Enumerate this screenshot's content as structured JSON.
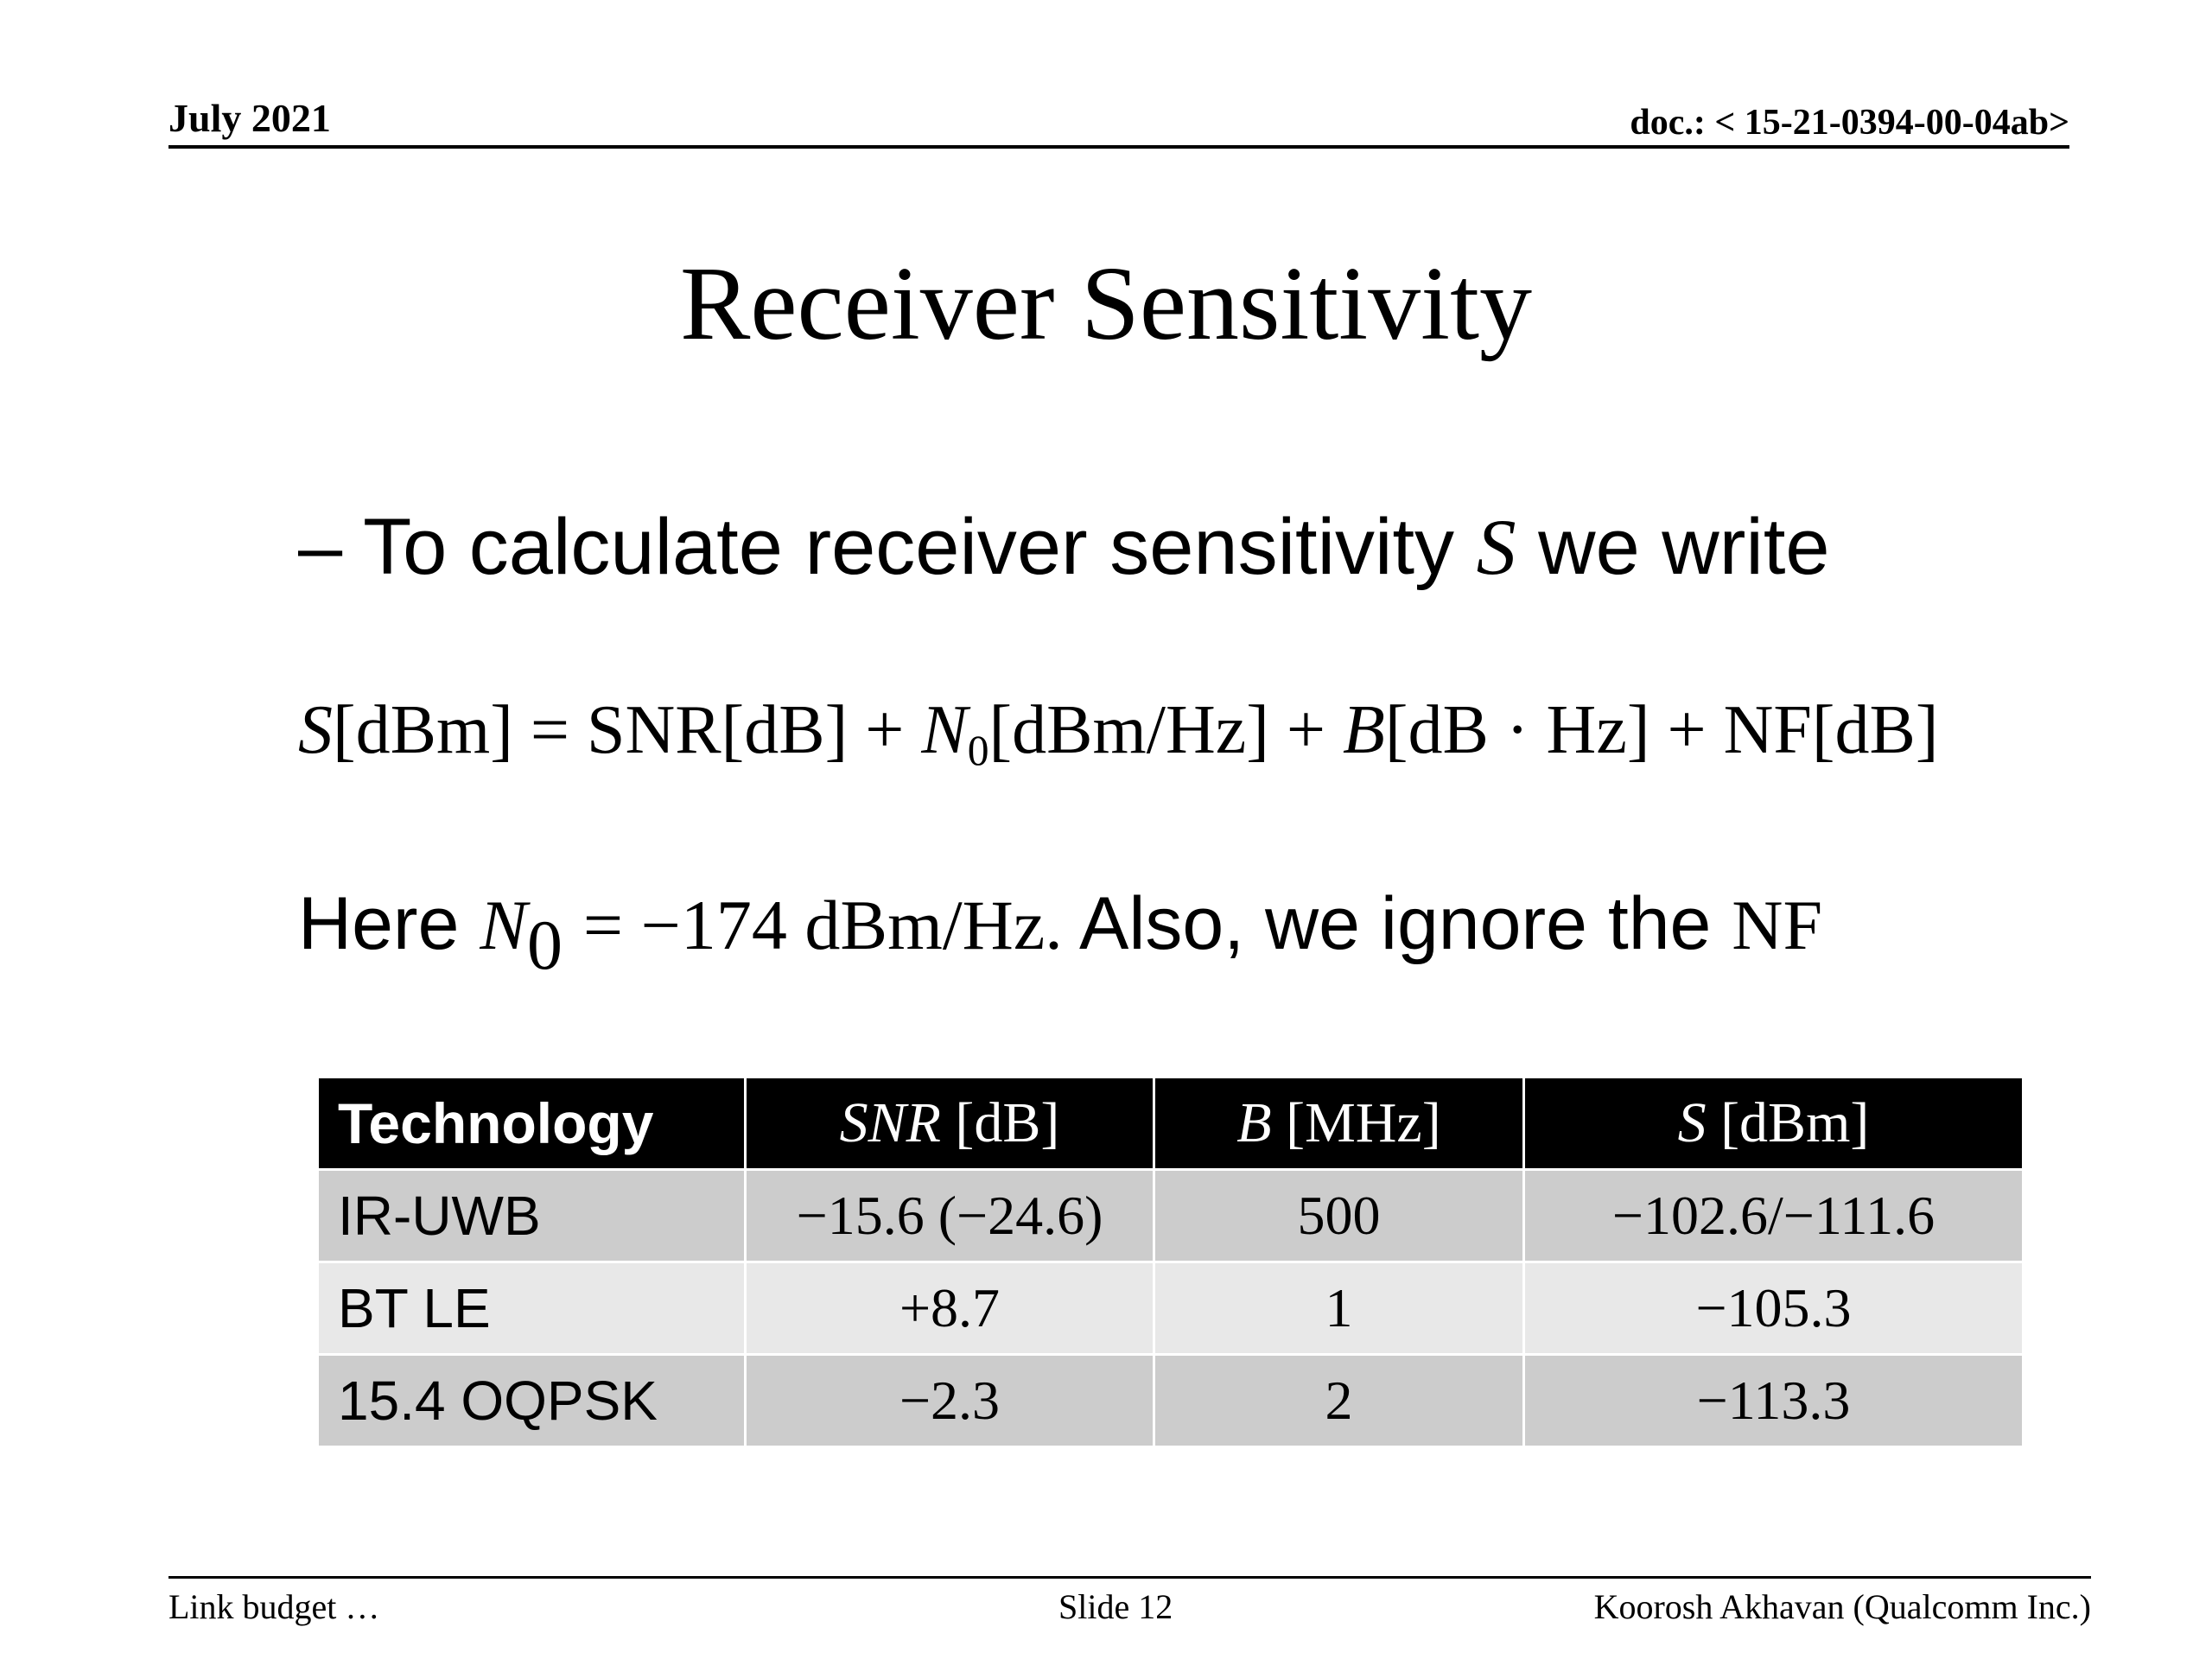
{
  "header": {
    "date": "July 2021",
    "doc": "doc.: < 15-21-0394-00-04ab>"
  },
  "title": "Receiver Sensitivity",
  "bullet": {
    "dash": "–",
    "text": "To calculate receiver sensitivity",
    "symbol": "S",
    "tail": "we write"
  },
  "equation": {
    "s": "S",
    "s_unit": "[dBm] = SNR[dB] + ",
    "n": "N",
    "n_sub": "0",
    "n_unit": "[dBm/Hz] + ",
    "b": "B",
    "b_unit": "[dB · Hz] + NF[dB]"
  },
  "note": {
    "here": "Here",
    "n": "N",
    "n_sub": "0",
    "value": "= −174 dBm/Hz.",
    "also": "Also, we ignore the",
    "nf": "NF"
  },
  "table": {
    "headers": [
      {
        "italic": "",
        "text": "Technology"
      },
      {
        "italic": "SNR",
        "text": " [dB]"
      },
      {
        "italic": "B",
        "text": " [MHz]"
      },
      {
        "italic": "S",
        "text": " [dBm]"
      }
    ],
    "rows": [
      [
        "IR-UWB",
        "−15.6  (−24.6)",
        "500",
        "−102.6/−111.6"
      ],
      [
        "BT LE",
        "+8.7",
        "1",
        "−105.3"
      ],
      [
        "15.4 OQPSK",
        "−2.3",
        "2",
        "−113.3"
      ]
    ]
  },
  "footer": {
    "left": "Link budget …",
    "center": "Slide 12",
    "right": "Koorosh Akhavan (Qualcomm Inc.)"
  }
}
